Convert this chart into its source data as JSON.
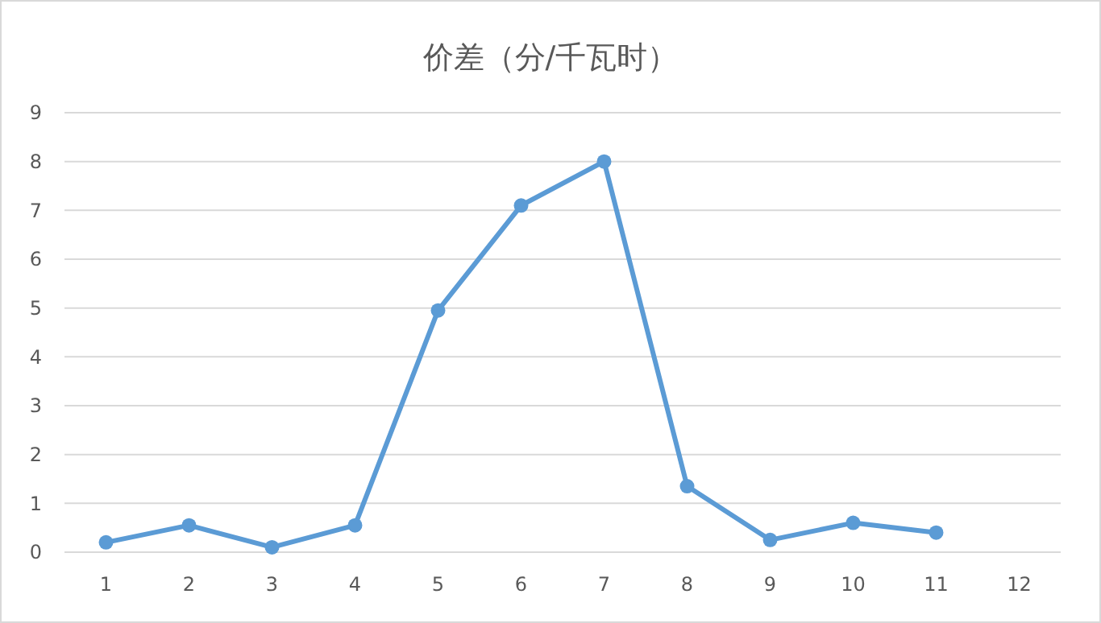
{
  "chart_data": {
    "type": "line",
    "title": "价差（分/千瓦时）",
    "categories": [
      "1",
      "2",
      "3",
      "4",
      "5",
      "6",
      "7",
      "8",
      "9",
      "10",
      "11",
      "12"
    ],
    "series": [
      {
        "color": "#5b9bd5",
        "values": [
          0.2,
          0.55,
          0.1,
          0.55,
          4.95,
          7.1,
          8.0,
          1.35,
          0.25,
          0.6,
          0.4,
          null
        ]
      }
    ],
    "ylim": [
      0,
      9
    ],
    "yticks": [
      0,
      1,
      2,
      3,
      4,
      5,
      6,
      7,
      8,
      9
    ],
    "grid": "y",
    "marker": "circle",
    "line_style": "solid"
  }
}
